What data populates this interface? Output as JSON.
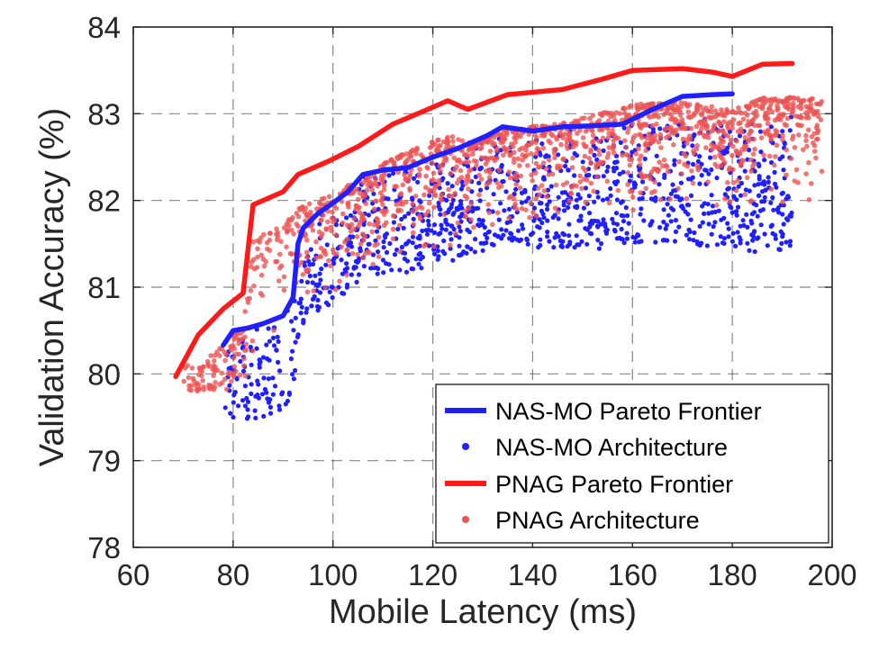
{
  "chart_data": {
    "type": "scatter",
    "xlabel": "Mobile Latency (ms)",
    "ylabel": "Validation Accuracy (%)",
    "xlim": [
      60,
      200
    ],
    "ylim": [
      78,
      84
    ],
    "xticks": [
      60,
      80,
      100,
      120,
      140,
      160,
      180,
      200
    ],
    "yticks": [
      78,
      79,
      80,
      81,
      82,
      83,
      84
    ],
    "grid": true,
    "legend_position": "bottom-right",
    "colors": {
      "nas_mo": "#1f1fff",
      "pnag": "#ff1a1a",
      "pnag_points": "#ec5454"
    },
    "series": [
      {
        "name": "NAS-MO Pareto Frontier",
        "kind": "line",
        "points": [
          [
            78,
            80.33
          ],
          [
            80,
            80.5
          ],
          [
            83,
            80.53
          ],
          [
            86,
            80.58
          ],
          [
            90,
            80.67
          ],
          [
            92,
            80.88
          ],
          [
            93,
            81.5
          ],
          [
            94,
            81.68
          ],
          [
            97,
            81.85
          ],
          [
            100,
            81.97
          ],
          [
            103,
            82.1
          ],
          [
            106,
            82.3
          ],
          [
            110,
            82.35
          ],
          [
            115,
            82.38
          ],
          [
            120,
            82.5
          ],
          [
            125,
            82.6
          ],
          [
            131,
            82.75
          ],
          [
            134,
            82.85
          ],
          [
            140,
            82.8
          ],
          [
            146,
            82.85
          ],
          [
            152,
            82.86
          ],
          [
            158,
            82.88
          ],
          [
            164,
            83.05
          ],
          [
            170,
            83.2
          ],
          [
            176,
            83.22
          ],
          [
            180,
            83.23
          ]
        ]
      },
      {
        "name": "NAS-MO Architecture",
        "kind": "scatter",
        "description_of_distribution": "dense cloud between the frontiers; latency ~78-192 ms, accuracy ~79.1-83.0 %"
      },
      {
        "name": "PNAG Pareto Frontier",
        "kind": "line",
        "points": [
          [
            68.5,
            79.97
          ],
          [
            73,
            80.45
          ],
          [
            78,
            80.75
          ],
          [
            82,
            80.93
          ],
          [
            84,
            81.95
          ],
          [
            90,
            82.1
          ],
          [
            93,
            82.3
          ],
          [
            99,
            82.45
          ],
          [
            105,
            82.62
          ],
          [
            112,
            82.88
          ],
          [
            119,
            83.05
          ],
          [
            123,
            83.15
          ],
          [
            127,
            83.05
          ],
          [
            135,
            83.22
          ],
          [
            146,
            83.28
          ],
          [
            154,
            83.4
          ],
          [
            160,
            83.5
          ],
          [
            170,
            83.52
          ],
          [
            176,
            83.48
          ],
          [
            180,
            83.43
          ],
          [
            186,
            83.57
          ],
          [
            192,
            83.58
          ]
        ]
      },
      {
        "name": "PNAG Architecture",
        "kind": "scatter",
        "description_of_distribution": "dense cloud just below the PNAG frontier; latency ~70-198 ms, accuracy ~79.8-83.5 %"
      }
    ]
  }
}
